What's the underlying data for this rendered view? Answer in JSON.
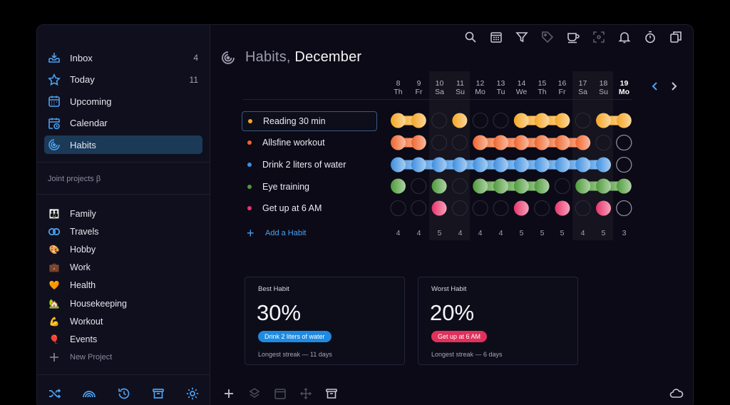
{
  "sidebar": {
    "nav": [
      {
        "label": "Inbox",
        "count": "4",
        "icon": "inbox-icon"
      },
      {
        "label": "Today",
        "count": "11",
        "icon": "star-icon"
      },
      {
        "label": "Upcoming",
        "count": "",
        "icon": "calendar-grid-icon"
      },
      {
        "label": "Calendar",
        "count": "",
        "icon": "calendar-clock-icon"
      },
      {
        "label": "Habits",
        "count": "",
        "icon": "habits-icon"
      }
    ],
    "section_label": "Joint projects β",
    "projects": [
      {
        "label": "Family",
        "icon": "family-icon",
        "glyph": "👪"
      },
      {
        "label": "Travels",
        "icon": "rings-icon",
        "glyph": ""
      },
      {
        "label": "Hobby",
        "icon": "palette-icon",
        "glyph": "🎨"
      },
      {
        "label": "Work",
        "icon": "briefcase-icon",
        "glyph": "💼"
      },
      {
        "label": "Health",
        "icon": "heart-icon",
        "glyph": "🧡"
      },
      {
        "label": "Housekeeping",
        "icon": "house-icon",
        "glyph": "🏡"
      },
      {
        "label": "Workout",
        "icon": "muscle-icon",
        "glyph": "💪"
      },
      {
        "label": "Events",
        "icon": "balloon-icon",
        "glyph": "🎈"
      }
    ],
    "new_project": "New Project"
  },
  "header": {
    "title_prefix": "Habits,",
    "title_month": "December"
  },
  "days": [
    {
      "num": "8",
      "dow": "Th",
      "count": "4"
    },
    {
      "num": "9",
      "dow": "Fr",
      "count": "4"
    },
    {
      "num": "10",
      "dow": "Sa",
      "count": "5"
    },
    {
      "num": "11",
      "dow": "Su",
      "count": "4"
    },
    {
      "num": "12",
      "dow": "Mo",
      "count": "4"
    },
    {
      "num": "13",
      "dow": "Tu",
      "count": "4"
    },
    {
      "num": "14",
      "dow": "We",
      "count": "5"
    },
    {
      "num": "15",
      "dow": "Th",
      "count": "5"
    },
    {
      "num": "16",
      "dow": "Fr",
      "count": "5"
    },
    {
      "num": "17",
      "dow": "Sa",
      "count": "4"
    },
    {
      "num": "18",
      "dow": "Su",
      "count": "5"
    },
    {
      "num": "19",
      "dow": "Mo",
      "count": "3"
    }
  ],
  "habits": [
    {
      "label": "Reading 30 min",
      "color": "#f5a524",
      "done": [
        1,
        1,
        0,
        1,
        0,
        0,
        1,
        1,
        1,
        0,
        1,
        1
      ]
    },
    {
      "label": "Allsfine workout",
      "color": "#f0652c",
      "done": [
        1,
        1,
        0,
        0,
        1,
        1,
        1,
        1,
        1,
        1,
        0,
        0
      ]
    },
    {
      "label": "Drink 2 liters of water",
      "color": "#3d8fe0",
      "done": [
        1,
        1,
        1,
        1,
        1,
        1,
        1,
        1,
        1,
        1,
        1,
        0
      ]
    },
    {
      "label": "Eye training",
      "color": "#4e9a3a",
      "done": [
        1,
        0,
        1,
        0,
        1,
        1,
        1,
        1,
        0,
        1,
        1,
        1
      ]
    },
    {
      "label": "Get up at 6 AM",
      "color": "#e8336b",
      "done": [
        0,
        0,
        1,
        0,
        0,
        0,
        1,
        0,
        1,
        0,
        1,
        0
      ]
    }
  ],
  "add_habit": "Add a Habit",
  "best": {
    "title": "Best Habit",
    "value": "30%",
    "habit": "Drink 2 liters of water",
    "streak": "Longest streak — 11 days",
    "color": "#1f8ae0"
  },
  "worst": {
    "title": "Worst Habit",
    "value": "20%",
    "habit": "Get up at 6 AM",
    "streak": "Longest streak — 6 days",
    "color": "#e0315c"
  }
}
